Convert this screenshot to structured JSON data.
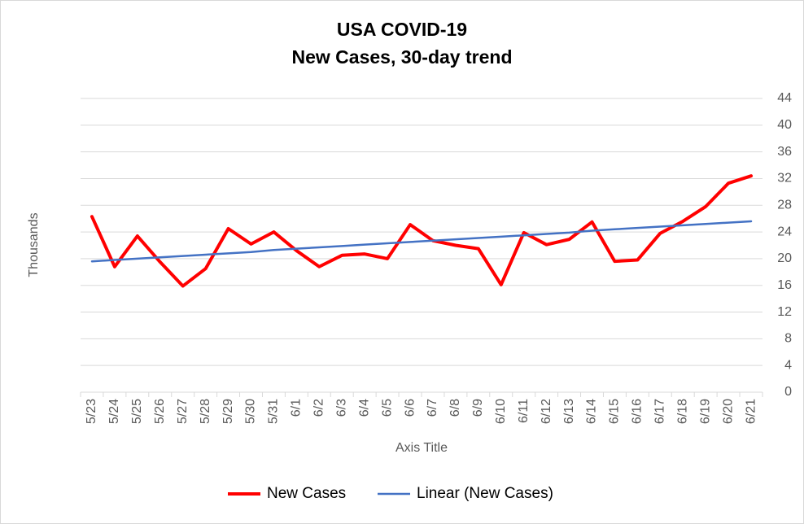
{
  "chart_data": {
    "type": "line",
    "title": "USA COVID-19",
    "subtitle": "New Cases, 30-day trend",
    "x_label": "Axis Title",
    "y_label": "Thousands",
    "categories": [
      "5/23",
      "5/24",
      "5/25",
      "5/26",
      "5/27",
      "5/28",
      "5/29",
      "5/30",
      "5/31",
      "6/1",
      "6/2",
      "6/3",
      "6/4",
      "6/5",
      "6/6",
      "6/7",
      "6/8",
      "6/9",
      "6/10",
      "6/11",
      "6/12",
      "6/13",
      "6/14",
      "6/15",
      "6/16",
      "6/17",
      "6/18",
      "6/19",
      "6/20",
      "6/21"
    ],
    "series": [
      {
        "name": "New Cases",
        "color": "#ff0000",
        "width": 4,
        "values": [
          26.3,
          18.8,
          23.4,
          19.5,
          15.9,
          18.5,
          24.5,
          22.2,
          24.0,
          21.2,
          18.8,
          20.5,
          20.7,
          20.0,
          25.1,
          22.7,
          22.0,
          21.5,
          16.1,
          23.9,
          22.1,
          22.9,
          25.5,
          19.6,
          19.8,
          23.8,
          25.6,
          27.8,
          31.3,
          32.4
        ]
      },
      {
        "name": "Linear (New Cases)",
        "color": "#4472c4",
        "width": 2.5,
        "values": [
          19.6,
          19.8,
          20.0,
          20.2,
          20.4,
          20.6,
          20.8,
          21.0,
          21.3,
          21.5,
          21.7,
          21.9,
          22.1,
          22.3,
          22.5,
          22.7,
          22.9,
          23.1,
          23.3,
          23.5,
          23.7,
          23.9,
          24.2,
          24.4,
          24.6,
          24.8,
          25.0,
          25.2,
          25.4,
          25.6
        ]
      }
    ],
    "ylim": [
      0,
      44
    ],
    "yticks": [
      0,
      4,
      8,
      12,
      16,
      20,
      24,
      28,
      32,
      36,
      40,
      44
    ],
    "y_axis_side": "right",
    "grid": true,
    "legend": "bottom"
  }
}
